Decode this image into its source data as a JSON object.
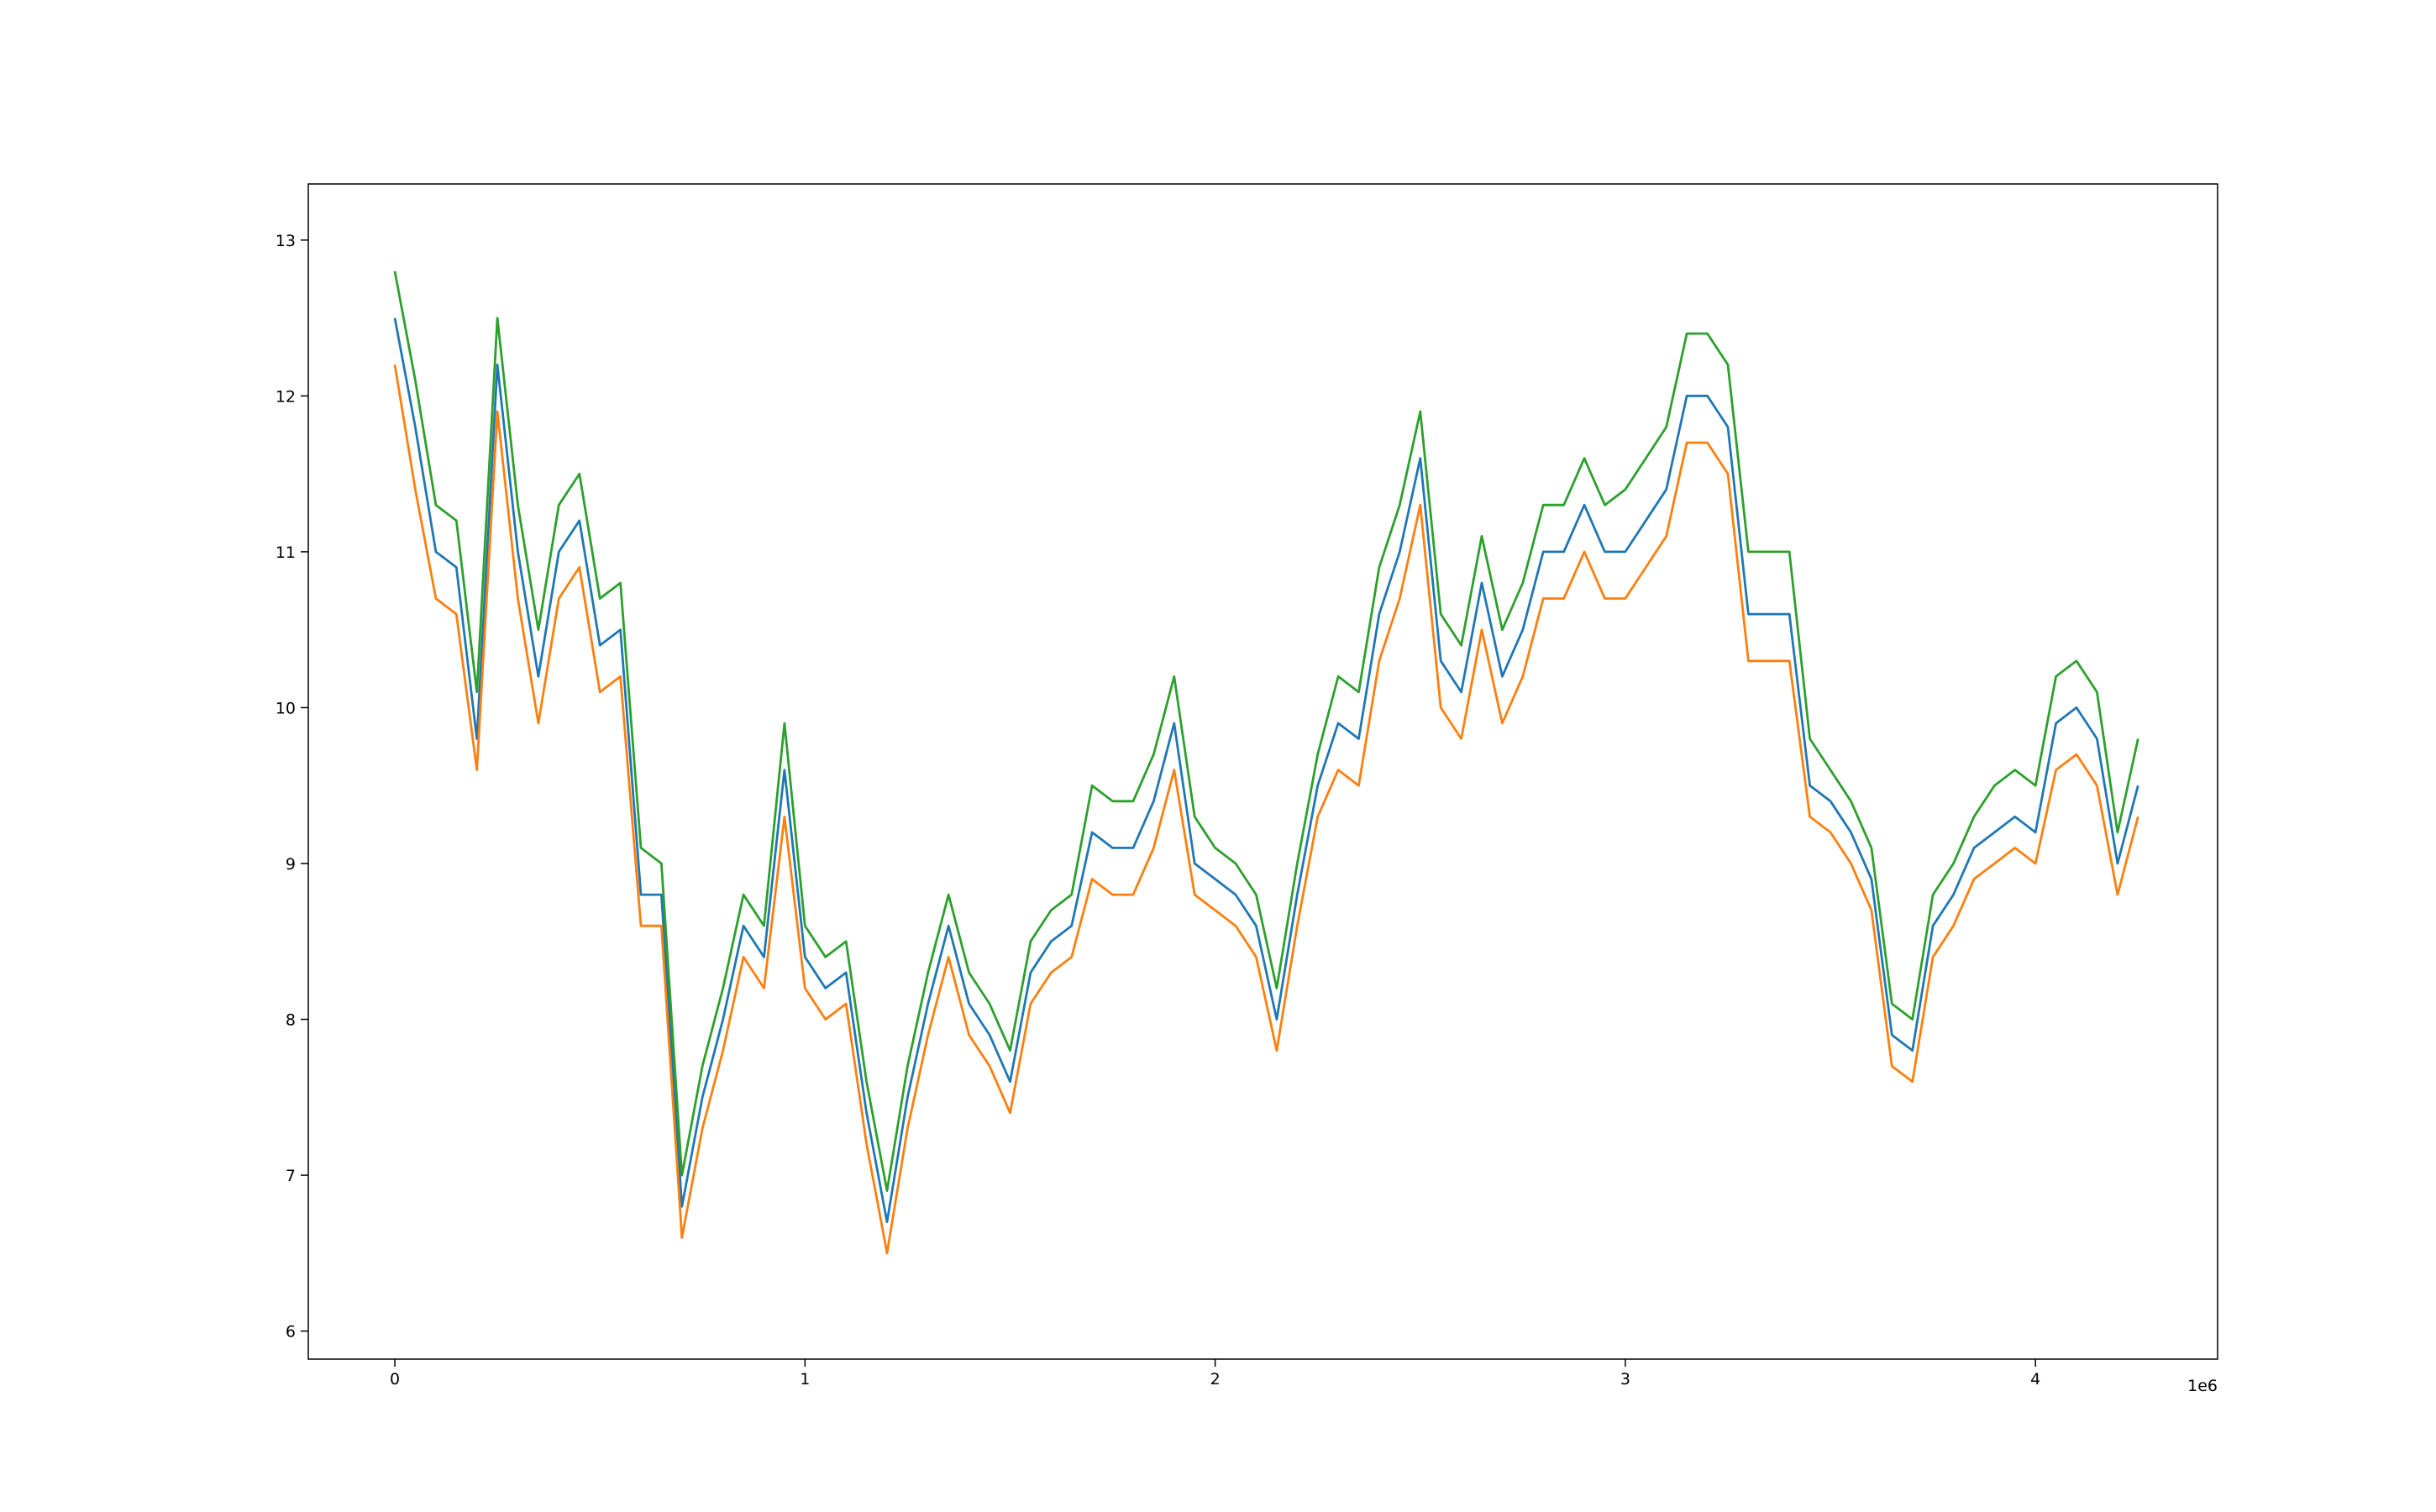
{
  "chart_data": {
    "type": "line",
    "x_offset_label": "1e6",
    "xlim": [
      -211000,
      4444000
    ],
    "ylim": [
      5.82,
      13.36
    ],
    "xticks": [
      0,
      {
        "value": 1000000,
        "label": "1"
      },
      {
        "value": 2000000,
        "label": "2"
      },
      {
        "value": 3000000,
        "label": "3"
      },
      {
        "value": 4000000,
        "label": "4"
      }
    ],
    "yticks": [
      6,
      7,
      8,
      9,
      10,
      11,
      12,
      13
    ],
    "x": [
      0,
      50000,
      100000,
      150000,
      200000,
      250000,
      300000,
      350000,
      400000,
      450000,
      500000,
      550000,
      600000,
      650000,
      700000,
      750000,
      800000,
      850000,
      900000,
      950000,
      1000000,
      1050000,
      1100000,
      1150000,
      1200000,
      1250000,
      1300000,
      1350000,
      1400000,
      1450000,
      1500000,
      1550000,
      1600000,
      1650000,
      1700000,
      1750000,
      1800000,
      1850000,
      1900000,
      1950000,
      2000000,
      2050000,
      2100000,
      2150000,
      2200000,
      2250000,
      2300000,
      2350000,
      2400000,
      2450000,
      2500000,
      2550000,
      2600000,
      2650000,
      2700000,
      2750000,
      2800000,
      2850000,
      2900000,
      2950000,
      3000000,
      3050000,
      3100000,
      3150000,
      3200000,
      3250000,
      3300000,
      3350000,
      3400000,
      3450000,
      3500000,
      3550000,
      3600000,
      3650000,
      3700000,
      3750000,
      3800000,
      3850000,
      3900000,
      3950000,
      4000000,
      4050000,
      4100000,
      4150000,
      4200000,
      4250000
    ],
    "series": [
      {
        "color": "#1f77b4",
        "values": [
          12.5,
          11.8,
          11.0,
          10.9,
          9.8,
          12.2,
          11.0,
          10.2,
          11.0,
          11.2,
          10.4,
          10.5,
          8.8,
          8.8,
          6.8,
          7.5,
          8.0,
          8.6,
          8.4,
          9.6,
          8.4,
          8.2,
          8.3,
          7.4,
          6.7,
          7.5,
          8.1,
          8.6,
          8.1,
          7.9,
          7.6,
          8.3,
          8.5,
          8.6,
          9.2,
          9.1,
          9.1,
          9.4,
          9.9,
          9.0,
          8.9,
          8.8,
          8.6,
          8.0,
          8.8,
          9.5,
          9.9,
          9.8,
          10.6,
          11.0,
          11.6,
          10.3,
          10.1,
          10.8,
          10.2,
          10.5,
          11.0,
          11.0,
          11.3,
          11.0,
          11.0,
          11.2,
          11.4,
          12.0,
          12.0,
          11.8,
          10.6,
          10.6,
          10.6,
          9.5,
          9.4,
          9.2,
          8.9,
          7.9,
          7.8,
          8.6,
          8.8,
          9.1,
          9.2,
          9.3,
          9.2,
          9.9,
          10.0,
          9.8,
          9.0,
          9.5
        ]
      },
      {
        "color": "#ff7f0e",
        "values": [
          12.2,
          11.4,
          10.7,
          10.6,
          9.6,
          11.9,
          10.7,
          9.9,
          10.7,
          10.9,
          10.1,
          10.2,
          8.6,
          8.6,
          6.6,
          7.3,
          7.8,
          8.4,
          8.2,
          9.3,
          8.2,
          8.0,
          8.1,
          7.2,
          6.5,
          7.3,
          7.9,
          8.4,
          7.9,
          7.7,
          7.4,
          8.1,
          8.3,
          8.4,
          8.9,
          8.8,
          8.8,
          9.1,
          9.6,
          8.8,
          8.7,
          8.6,
          8.4,
          7.8,
          8.6,
          9.3,
          9.6,
          9.5,
          10.3,
          10.7,
          11.3,
          10.0,
          9.8,
          10.5,
          9.9,
          10.2,
          10.7,
          10.7,
          11.0,
          10.7,
          10.7,
          10.9,
          11.1,
          11.7,
          11.7,
          11.5,
          10.3,
          10.3,
          10.3,
          9.3,
          9.2,
          9.0,
          8.7,
          7.7,
          7.6,
          8.4,
          8.6,
          8.9,
          9.0,
          9.1,
          9.0,
          9.6,
          9.7,
          9.5,
          8.8,
          9.3
        ]
      },
      {
        "color": "#2ca02c",
        "values": [
          12.8,
          12.1,
          11.3,
          11.2,
          10.1,
          12.5,
          11.3,
          10.5,
          11.3,
          11.5,
          10.7,
          10.8,
          9.1,
          9.0,
          7.0,
          7.7,
          8.2,
          8.8,
          8.6,
          9.9,
          8.6,
          8.4,
          8.5,
          7.6,
          6.9,
          7.7,
          8.3,
          8.8,
          8.3,
          8.1,
          7.8,
          8.5,
          8.7,
          8.8,
          9.5,
          9.4,
          9.4,
          9.7,
          10.2,
          9.3,
          9.1,
          9.0,
          8.8,
          8.2,
          9.0,
          9.7,
          10.2,
          10.1,
          10.9,
          11.3,
          11.9,
          10.6,
          10.4,
          11.1,
          10.5,
          10.8,
          11.3,
          11.3,
          11.6,
          11.3,
          11.4,
          11.6,
          11.8,
          12.4,
          12.4,
          12.2,
          11.0,
          11.0,
          11.0,
          9.8,
          9.6,
          9.4,
          9.1,
          8.1,
          8.0,
          8.8,
          9.0,
          9.3,
          9.5,
          9.6,
          9.5,
          10.2,
          10.3,
          10.1,
          9.2,
          9.8
        ]
      }
    ]
  }
}
